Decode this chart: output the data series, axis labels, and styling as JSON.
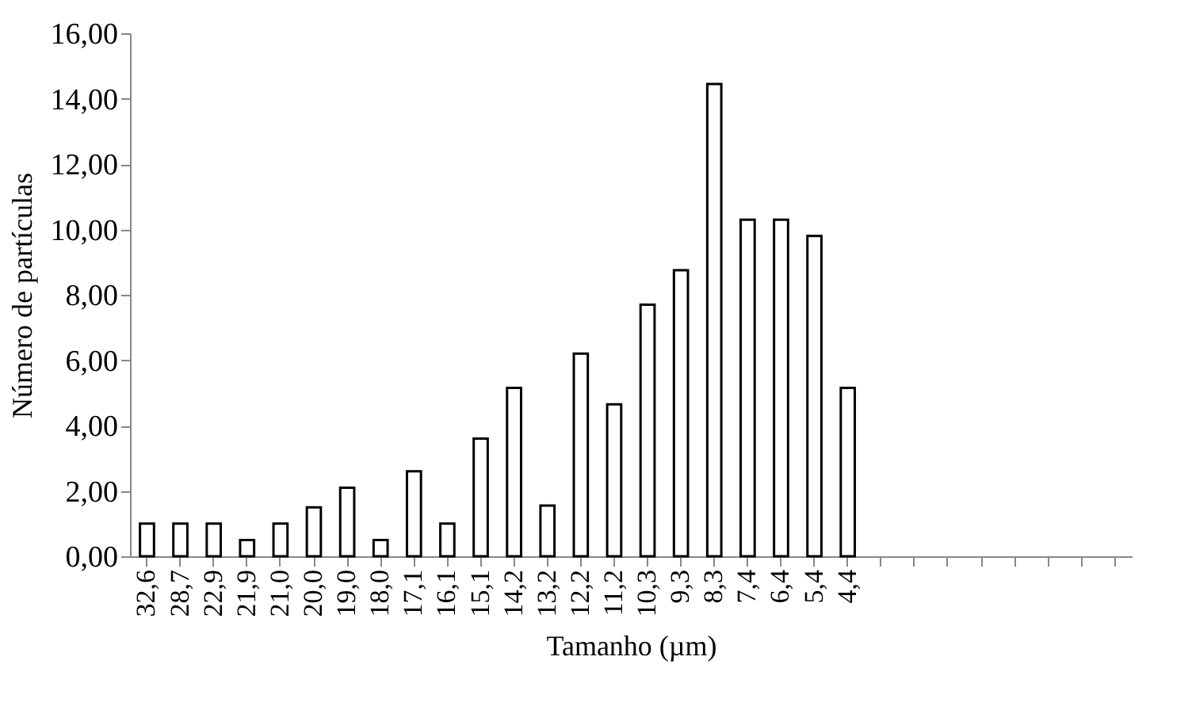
{
  "chart_data": {
    "type": "bar",
    "xlabel": "Tamanho (µm)",
    "ylabel": "Número de partículas",
    "categories": [
      "32,6",
      "28,7",
      "22,9",
      "21,9",
      "21,0",
      "20,0",
      "19,0",
      "18,0",
      "17,1",
      "16,1",
      "15,1",
      "14,2",
      "13,2",
      "12,2",
      "11,2",
      "10,3",
      "9,3",
      "8,3",
      "7,4",
      "6,4",
      "5,4",
      "4,4",
      null,
      null,
      null,
      null,
      null,
      null,
      null,
      null
    ],
    "values": [
      1.0,
      1.0,
      1.0,
      0.5,
      1.0,
      1.5,
      2.1,
      0.5,
      2.6,
      1.0,
      3.6,
      5.15,
      1.55,
      6.2,
      4.65,
      7.7,
      8.75,
      14.45,
      10.3,
      10.3,
      9.8,
      5.15,
      null,
      null,
      null,
      null,
      null,
      null,
      null,
      null
    ],
    "color": "#ffffff",
    "ylim": [
      0,
      16
    ],
    "yticks": [
      {
        "value": 0,
        "label": "0,00"
      },
      {
        "value": 2,
        "label": "2,00"
      },
      {
        "value": 4,
        "label": "4,00"
      },
      {
        "value": 6,
        "label": "6,00"
      },
      {
        "value": 8,
        "label": "8,00"
      },
      {
        "value": 10,
        "label": "10,00"
      },
      {
        "value": 12,
        "label": "12,00"
      },
      {
        "value": 14,
        "label": "14,00"
      },
      {
        "value": 16,
        "label": "16,00"
      }
    ],
    "grid": false
  }
}
